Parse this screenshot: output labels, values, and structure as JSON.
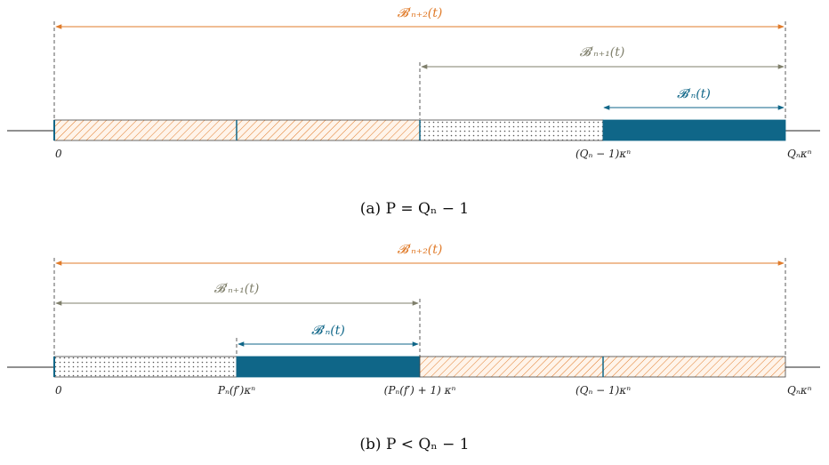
{
  "colors": {
    "orange": "#e07b2a",
    "gray": "#7f7f6b",
    "teal": "#0f6688",
    "hatch_fill": "#fff4ea"
  },
  "diagram_a": {
    "brace_n2": "𝓑′ₙ₊₂(t)",
    "brace_n1": "𝓑′ₙ₊₁(t)",
    "brace_n": "𝓑′ₙ(t)",
    "tick_0": "0",
    "tick_qn_minus_1": "(Qₙ − 1)κⁿ",
    "tick_qn": "Qₙκⁿ",
    "caption": "(a) P = Qₙ − 1"
  },
  "diagram_b": {
    "brace_n2": "𝓑′ₙ₊₂(t)",
    "brace_n1": "𝓑′ₙ₊₁(t)",
    "brace_n": "𝓑′ₙ(t)",
    "tick_0": "0",
    "tick_pn": "Pₙ(f′)κⁿ",
    "tick_pn_plus_1": "(Pₙ(f′) + 1) κⁿ",
    "tick_qn_minus_1": "(Qₙ − 1)κⁿ",
    "tick_qn": "Qₙκⁿ",
    "caption": "(b) P < Qₙ − 1"
  }
}
